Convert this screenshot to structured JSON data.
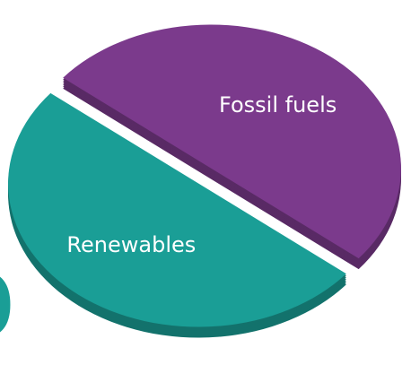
{
  "chart_data": {
    "type": "pie",
    "categories": [
      "Fossil fuels",
      "Renewables"
    ],
    "values": [
      50,
      50
    ],
    "colors": [
      "#7b3a8c",
      "#1a9e96"
    ],
    "annotation": "0"
  }
}
